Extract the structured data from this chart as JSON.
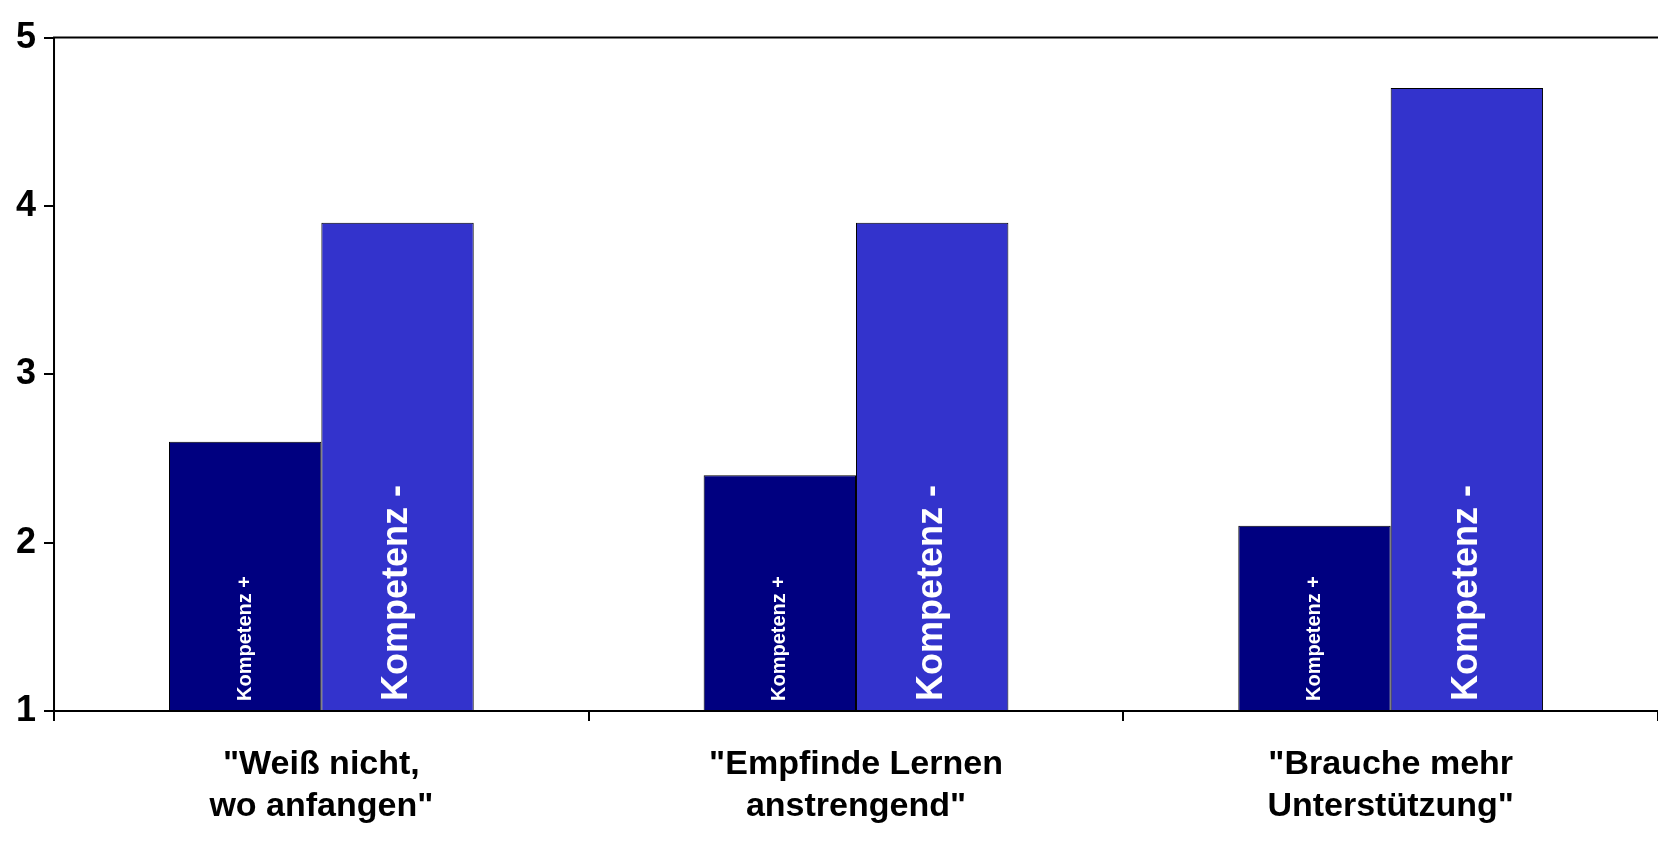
{
  "chart_data": {
    "type": "bar",
    "categories": [
      "\"Weiß nicht, wo anfangen\"",
      "\"Empfinde Lernen anstrengend\"",
      "\"Brauche mehr Unterstützung\""
    ],
    "series": [
      {
        "name": "Kompetenz +",
        "color": "#000080",
        "values": [
          2.6,
          2.4,
          2.1
        ]
      },
      {
        "name": "Kompetenz -",
        "color": "#3333cc",
        "values": [
          3.9,
          3.9,
          4.7
        ]
      }
    ],
    "ylim": [
      1,
      5
    ],
    "yticks": [
      1,
      2,
      3,
      4,
      5
    ],
    "grid": false,
    "legend": false
  }
}
